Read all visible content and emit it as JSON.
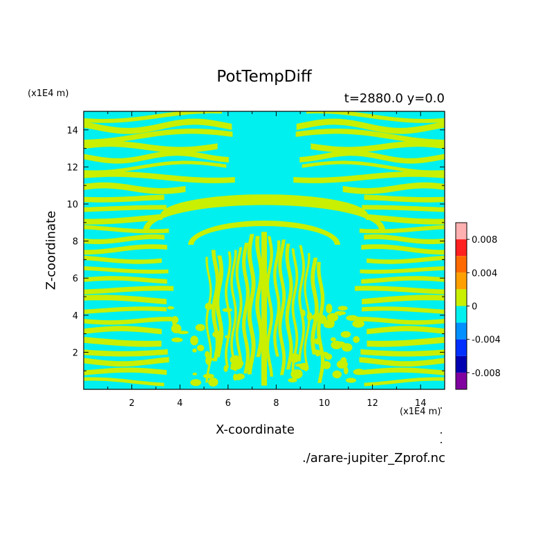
{
  "chart_data": {
    "type": "heatmap",
    "title": "PotTempDiff",
    "subtitle": "t=2880.0 y=0.0",
    "xlabel": "X-coordinate",
    "ylabel": "Z-coordinate",
    "x_units": "(x1E4 m)",
    "y_units": "(x1E4 m)",
    "xlim": [
      0,
      15
    ],
    "ylim": [
      0,
      15
    ],
    "x_ticks": [
      "2",
      "4",
      "6",
      "8",
      "10",
      "12",
      "14"
    ],
    "y_ticks": [
      "2",
      "4",
      "6",
      "8",
      "10",
      "12",
      "14"
    ],
    "grid": false,
    "colorbar": {
      "range": [
        -0.01,
        0.01
      ],
      "labels": [
        "0.008",
        "0.004",
        "0",
        "-0.004",
        "-0.008"
      ],
      "colors": [
        "#ffb0b0",
        "#ff2020",
        "#ff6a00",
        "#ffa000",
        "#c8f000",
        "#00f0f0",
        "#0090ff",
        "#0030ff",
        "#0000b0",
        "#8000a0"
      ]
    },
    "field_colors": {
      "negative_small": "#00f0f0",
      "positive_small": "#c8f000"
    },
    "footer": "./arare-jupiter_Zprof.nc"
  }
}
